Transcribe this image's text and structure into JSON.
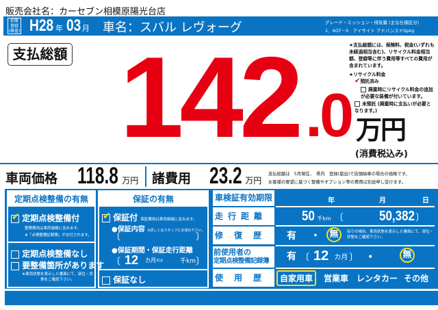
{
  "dealer": {
    "label": "販売会社名：",
    "name": "カーセブン相模原陽光台店"
  },
  "header": {
    "first_reg_badge": [
      "初度",
      "登録",
      "(検査)"
    ],
    "era_year": "H28",
    "year_unit": "年",
    "month": "03",
    "month_unit": "月",
    "car_name_label": "車名：",
    "car_name": "スバル レヴォーグ",
    "grade_label": "グレード・ミッション・排気量 (主な仕様区分)",
    "grade_value": "1．6GT－S　アイサイト アドバンスドSpkg"
  },
  "total": {
    "label": "支払総額",
    "int": "142",
    "dec": ".0",
    "unit": "万円",
    "tax_note": "(消費税込み)",
    "notice": "★支払総額には、保険料、税金(いずれも未経過相当含む)、リサイクル料金相当額、登録等に伴う費用等すべての費用が含まれています。",
    "recycle_title": "★リサイクル料金",
    "recycle_options": [
      {
        "label": "預託済み",
        "checked": true
      },
      {
        "label": "廃棄時にリサイクル料金の追加が必要な装備が付いています。",
        "checked": false
      },
      {
        "label": "未預託 (廃棄時に支払いが必要となります。)",
        "checked": false
      }
    ]
  },
  "prices": {
    "vehicle_label": "車両価格",
    "vehicle_value": "118.8",
    "unit": "万円",
    "fees_label": "諸費用",
    "fees_value": "23.2",
    "note1": "支払総額は　5月現在、　県内　登録(届出)で店頭納車の場合の価格です。",
    "note2": "お客様の要望に基づく整備やオプション等の費用は別途申し受けます。"
  },
  "inspection": {
    "title": "定期点検整備の有無",
    "opt_with": "定期点検整備付",
    "opt_with_checked": true,
    "with_note1": "整備費用は車両価格に含みます。",
    "with_note2": "★「点検整備記録簿」が交付されます。",
    "opt_without": "定期点検整備なし",
    "opt_needs": "要整備箇所があります",
    "needs_note": "★車両状態を表示した書面にて、部位・状態をご確認下さい。"
  },
  "warranty": {
    "title": "保証の有無",
    "opt_with": "保証付",
    "opt_with_checked": true,
    "with_note": "保証費用は車両価格に含みます。",
    "content_label": "●保証内容",
    "content_note": "※詳しくはスタッフにお尋ね下さい。",
    "period_label": "●保証期間・保証走行距離",
    "period_value": "12",
    "period_unit": "カ月",
    "or": "又は",
    "km_unit": "千km",
    "opt_without": "保証なし"
  },
  "details": {
    "shaken_label": "車検証有効期限",
    "year": "年",
    "month": "月",
    "day": "日",
    "mileage_label": "走行距離",
    "mileage_k": "50",
    "mileage_k_unit": "千km",
    "mileage_exact": "50,382",
    "repair_label": "修復歴",
    "yes": "有",
    "dot": "・",
    "no": "無",
    "repair_selected": "無",
    "repair_note": "有りの場合、車両状態を表示した書面にて、部位・状態をご確認下さい。",
    "record_label1": "前使用者の",
    "record_label2": "定期点検整備記録簿",
    "record_months": "12",
    "record_unit": "カ月",
    "record_selected": "無",
    "usage_label": "使用歴",
    "usage_options": [
      "自家用車",
      "営業車",
      "レンタカー",
      "その他"
    ],
    "usage_selected": "自家用車"
  },
  "colors": {
    "blue": "#0a74c4",
    "red": "#e60012",
    "yellow": "#f5e11a"
  }
}
